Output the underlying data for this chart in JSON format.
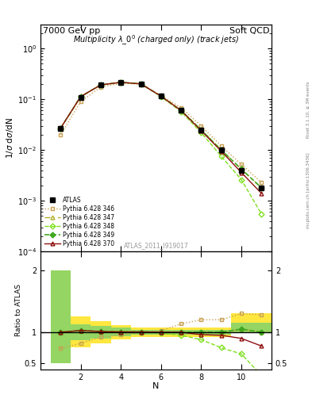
{
  "title_left": "7000 GeV pp",
  "title_right": "Soft QCD",
  "plot_title": "Multiplicity $\\lambda\\_0^0$ (charged only) (track jets)",
  "watermark": "ATLAS_2011_I919017",
  "xlabel": "N",
  "ylabel_main": "1/$\\sigma$ d$\\sigma$/dN",
  "ylabel_ratio": "Ratio to ATLAS",
  "right_label": "Rivet 3.1.10, ≥ 3M events",
  "right_label2": "mcplots.cern.ch [arXiv:1306.3436]",
  "x_data": [
    1,
    2,
    3,
    4,
    5,
    6,
    7,
    8,
    9,
    10,
    11
  ],
  "atlas_data": [
    0.027,
    0.11,
    0.19,
    0.215,
    0.2,
    0.115,
    0.06,
    0.025,
    0.01,
    0.004,
    0.0018
  ],
  "pythia_346": [
    0.02,
    0.09,
    0.175,
    0.205,
    0.2,
    0.118,
    0.068,
    0.03,
    0.012,
    0.0052,
    0.0023
  ],
  "pythia_347": [
    0.027,
    0.113,
    0.192,
    0.216,
    0.201,
    0.115,
    0.06,
    0.025,
    0.01,
    0.0042,
    0.0018
  ],
  "pythia_348": [
    0.027,
    0.113,
    0.192,
    0.216,
    0.201,
    0.113,
    0.057,
    0.022,
    0.0075,
    0.0026,
    0.00055
  ],
  "pythia_349": [
    0.027,
    0.113,
    0.192,
    0.216,
    0.201,
    0.115,
    0.06,
    0.025,
    0.01,
    0.0042,
    0.0018
  ],
  "pythia_370": [
    0.027,
    0.113,
    0.192,
    0.216,
    0.201,
    0.115,
    0.06,
    0.024,
    0.0095,
    0.0036,
    0.0014
  ],
  "ratio_346": [
    0.74,
    0.82,
    0.92,
    0.955,
    1.0,
    1.026,
    1.133,
    1.2,
    1.2,
    1.3,
    1.28
  ],
  "ratio_347": [
    1.0,
    1.027,
    1.011,
    1.005,
    1.005,
    1.0,
    1.0,
    1.0,
    1.0,
    1.05,
    1.0
  ],
  "ratio_348": [
    1.0,
    1.027,
    1.011,
    1.005,
    1.005,
    0.983,
    0.95,
    0.88,
    0.75,
    0.65,
    0.306
  ],
  "ratio_349": [
    1.0,
    1.027,
    1.011,
    1.005,
    1.005,
    1.0,
    1.0,
    1.0,
    1.0,
    1.05,
    1.0
  ],
  "ratio_370": [
    1.0,
    1.027,
    1.011,
    1.005,
    1.005,
    1.0,
    1.0,
    0.96,
    0.95,
    0.9,
    0.778
  ],
  "band_x": [
    0.5,
    1.5,
    2.5,
    3.5,
    4.5,
    5.5,
    6.5,
    7.5,
    8.5,
    9.5,
    10.5,
    11.5
  ],
  "band_yellow_lo": [
    0.5,
    0.75,
    0.82,
    0.88,
    0.92,
    0.92,
    0.92,
    0.92,
    0.92,
    1.0,
    1.0,
    1.0
  ],
  "band_yellow_hi": [
    2.0,
    1.25,
    1.18,
    1.12,
    1.08,
    1.08,
    1.08,
    1.08,
    1.08,
    1.3,
    1.3,
    1.3
  ],
  "band_green_lo": [
    0.5,
    0.87,
    0.9,
    0.93,
    0.96,
    0.96,
    0.96,
    0.96,
    0.96,
    1.0,
    1.0,
    1.0
  ],
  "band_green_hi": [
    2.0,
    1.13,
    1.1,
    1.07,
    1.04,
    1.04,
    1.04,
    1.04,
    1.04,
    1.15,
    1.15,
    1.15
  ],
  "color_346": "#c8a050",
  "color_347": "#b0b030",
  "color_348": "#80e020",
  "color_349": "#40a820",
  "color_370": "#901010",
  "color_atlas": "#000000",
  "ylim_main": [
    0.0001,
    3.0
  ],
  "ylim_ratio": [
    0.4,
    2.3
  ],
  "xlim_main": [
    0.5,
    11.5
  ],
  "xlim_ratio": [
    0,
    11.5
  ]
}
